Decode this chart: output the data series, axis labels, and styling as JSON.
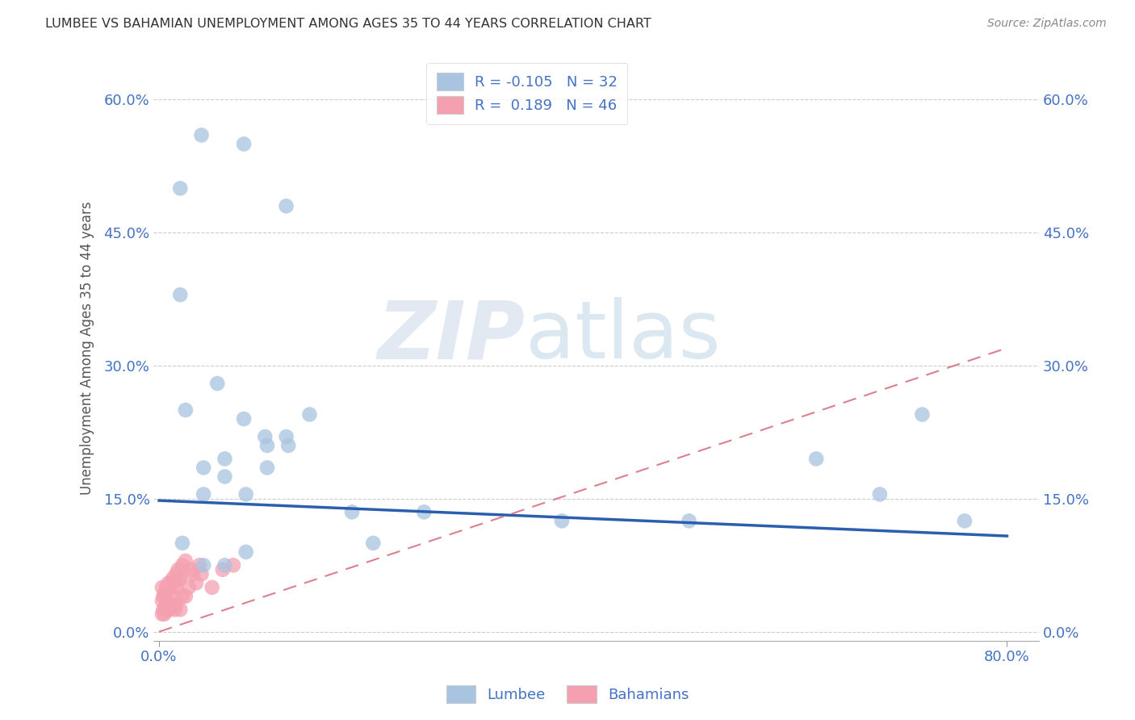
{
  "title": "LUMBEE VS BAHAMIAN UNEMPLOYMENT AMONG AGES 35 TO 44 YEARS CORRELATION CHART",
  "source": "Source: ZipAtlas.com",
  "xlim": [
    -0.005,
    0.83
  ],
  "ylim": [
    -0.01,
    0.65
  ],
  "ylabel_ticks": [
    0.0,
    0.15,
    0.3,
    0.45,
    0.6
  ],
  "ylabel_labels": [
    "0.0%",
    "15.0%",
    "30.0%",
    "45.0%",
    "60.0%"
  ],
  "xtick_vals": [
    0.0,
    0.8
  ],
  "xtick_labels": [
    "0.0%",
    "80.0%"
  ],
  "lumbee_R": -0.105,
  "lumbee_N": 32,
  "bahamian_R": 0.189,
  "bahamian_N": 46,
  "lumbee_color": "#a8c4e0",
  "bahamian_color": "#f4a0b0",
  "lumbee_line_color": "#2b5fad",
  "bahamian_line_color": "#d46070",
  "lumbee_line_y0": 0.148,
  "lumbee_line_y1": 0.108,
  "bahamian_line_y0": 0.0,
  "bahamian_line_y1": 0.32,
  "watermark_zip": "ZIP",
  "watermark_atlas": "atlas",
  "lumbee_scatter_x": [
    0.02,
    0.04,
    0.02,
    0.08,
    0.12,
    0.025,
    0.055,
    0.08,
    0.1,
    0.12,
    0.022,
    0.042,
    0.062,
    0.082,
    0.102,
    0.142,
    0.182,
    0.25,
    0.38,
    0.5,
    0.62,
    0.68,
    0.72,
    0.76,
    0.042,
    0.062,
    0.042,
    0.062,
    0.082,
    0.102,
    0.122,
    0.202
  ],
  "lumbee_scatter_y": [
    0.5,
    0.56,
    0.38,
    0.55,
    0.48,
    0.25,
    0.28,
    0.24,
    0.22,
    0.22,
    0.1,
    0.185,
    0.175,
    0.155,
    0.185,
    0.245,
    0.135,
    0.135,
    0.125,
    0.125,
    0.195,
    0.155,
    0.245,
    0.125,
    0.075,
    0.075,
    0.155,
    0.195,
    0.09,
    0.21,
    0.21,
    0.1
  ],
  "bahamian_scatter_x": [
    0.003,
    0.003,
    0.003,
    0.004,
    0.004,
    0.005,
    0.005,
    0.006,
    0.006,
    0.007,
    0.007,
    0.008,
    0.008,
    0.009,
    0.009,
    0.01,
    0.01,
    0.011,
    0.011,
    0.012,
    0.012,
    0.013,
    0.013,
    0.014,
    0.015,
    0.015,
    0.016,
    0.016,
    0.017,
    0.018,
    0.019,
    0.02,
    0.02,
    0.022,
    0.022,
    0.025,
    0.025,
    0.028,
    0.03,
    0.032,
    0.035,
    0.038,
    0.04,
    0.05,
    0.06,
    0.07
  ],
  "bahamian_scatter_y": [
    0.02,
    0.035,
    0.05,
    0.025,
    0.04,
    0.02,
    0.04,
    0.025,
    0.045,
    0.03,
    0.05,
    0.025,
    0.045,
    0.03,
    0.055,
    0.025,
    0.05,
    0.03,
    0.055,
    0.03,
    0.055,
    0.03,
    0.06,
    0.04,
    0.025,
    0.055,
    0.03,
    0.065,
    0.05,
    0.07,
    0.06,
    0.025,
    0.06,
    0.04,
    0.075,
    0.04,
    0.08,
    0.05,
    0.07,
    0.065,
    0.055,
    0.075,
    0.065,
    0.05,
    0.07,
    0.075
  ]
}
